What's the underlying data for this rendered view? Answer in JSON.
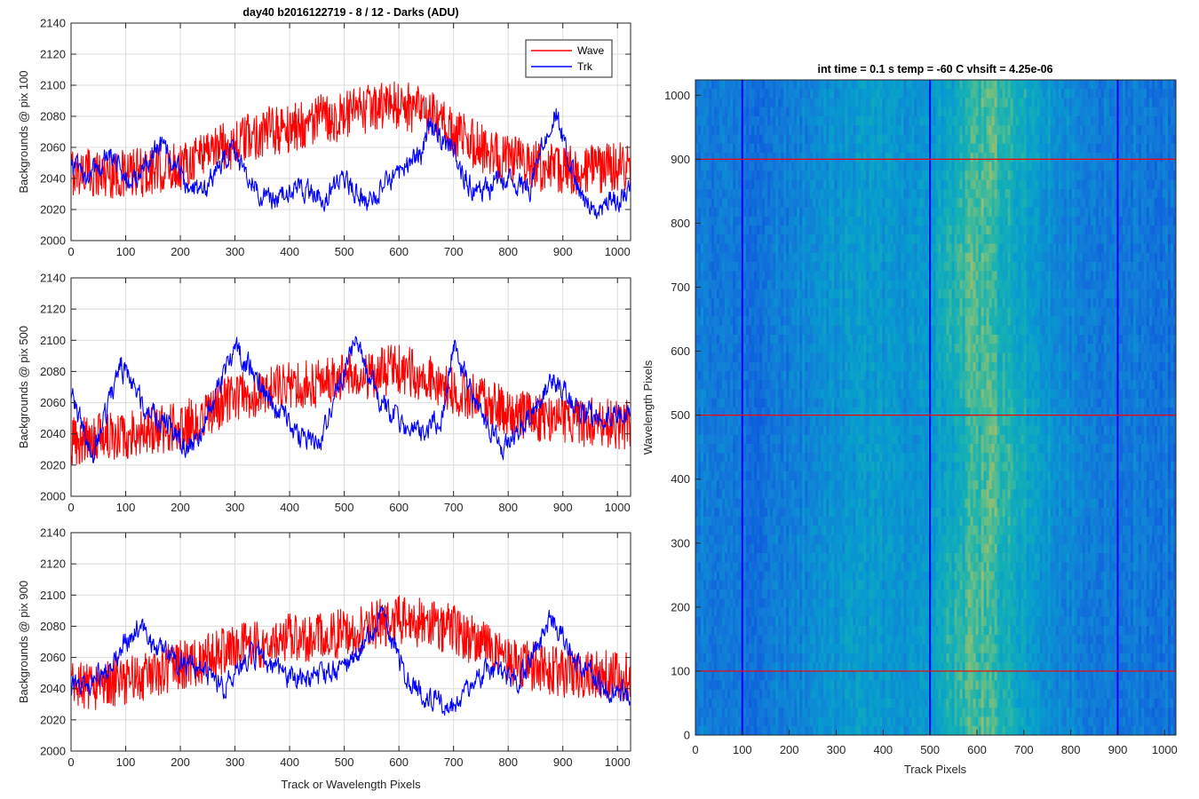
{
  "figure_title": "day40 b2016122719 - 8 / 12 - Darks (ADU)",
  "chart_data": [
    {
      "type": "line",
      "title": "day40 b2016122719 - 8 / 12 - Darks (ADU)",
      "xlabel": "",
      "ylabel": "Backgrounds @ pix 100",
      "xlim": [
        0,
        1024
      ],
      "ylim": [
        2000,
        2140
      ],
      "xticks": [
        0,
        100,
        200,
        300,
        400,
        500,
        600,
        700,
        800,
        900,
        1000
      ],
      "yticks": [
        2000,
        2020,
        2040,
        2060,
        2080,
        2100,
        2120,
        2140
      ],
      "grid": true,
      "legend": {
        "placement": "top-right",
        "entries": [
          "Wave",
          "Trk"
        ]
      },
      "series": [
        {
          "name": "Wave",
          "color": "#ff0000",
          "n_points": 1024,
          "noise_amplitude": 16,
          "anchors": [
            [
              0,
              2045
            ],
            [
              100,
              2042
            ],
            [
              200,
              2048
            ],
            [
              250,
              2060
            ],
            [
              300,
              2062
            ],
            [
              350,
              2070
            ],
            [
              400,
              2072
            ],
            [
              450,
              2078
            ],
            [
              500,
              2080
            ],
            [
              550,
              2085
            ],
            [
              600,
              2088
            ],
            [
              650,
              2082
            ],
            [
              700,
              2070
            ],
            [
              750,
              2060
            ],
            [
              800,
              2052
            ],
            [
              850,
              2048
            ],
            [
              900,
              2045
            ],
            [
              1024,
              2048
            ]
          ]
        },
        {
          "name": "Trk",
          "color": "#0000ff",
          "n_points": 1024,
          "noise_amplitude": 6,
          "anchors": [
            [
              0,
              2050
            ],
            [
              30,
              2040
            ],
            [
              70,
              2055
            ],
            [
              110,
              2035
            ],
            [
              160,
              2062
            ],
            [
              210,
              2038
            ],
            [
              240,
              2030
            ],
            [
              290,
              2060
            ],
            [
              330,
              2038
            ],
            [
              370,
              2025
            ],
            [
              410,
              2035
            ],
            [
              460,
              2028
            ],
            [
              500,
              2040
            ],
            [
              540,
              2025
            ],
            [
              590,
              2042
            ],
            [
              640,
              2055
            ],
            [
              660,
              2075
            ],
            [
              690,
              2062
            ],
            [
              740,
              2030
            ],
            [
              790,
              2040
            ],
            [
              840,
              2035
            ],
            [
              885,
              2085
            ],
            [
              930,
              2030
            ],
            [
              960,
              2020
            ],
            [
              1024,
              2032
            ]
          ]
        }
      ]
    },
    {
      "type": "line",
      "title": "",
      "xlabel": "",
      "ylabel": "Backgrounds @ pix 500",
      "xlim": [
        0,
        1024
      ],
      "ylim": [
        2000,
        2140
      ],
      "xticks": [
        0,
        100,
        200,
        300,
        400,
        500,
        600,
        700,
        800,
        900,
        1000
      ],
      "yticks": [
        2000,
        2020,
        2040,
        2060,
        2080,
        2100,
        2120,
        2140
      ],
      "grid": true,
      "series": [
        {
          "name": "Wave",
          "color": "#ff0000",
          "n_points": 1024,
          "noise_amplitude": 16,
          "anchors": [
            [
              0,
              2035
            ],
            [
              100,
              2040
            ],
            [
              200,
              2045
            ],
            [
              280,
              2060
            ],
            [
              350,
              2068
            ],
            [
              450,
              2072
            ],
            [
              550,
              2078
            ],
            [
              600,
              2082
            ],
            [
              650,
              2076
            ],
            [
              700,
              2068
            ],
            [
              800,
              2055
            ],
            [
              900,
              2048
            ],
            [
              1024,
              2046
            ]
          ]
        },
        {
          "name": "Trk",
          "color": "#0000ff",
          "n_points": 1024,
          "noise_amplitude": 6,
          "anchors": [
            [
              0,
              2065
            ],
            [
              40,
              2025
            ],
            [
              90,
              2085
            ],
            [
              130,
              2060
            ],
            [
              180,
              2045
            ],
            [
              220,
              2030
            ],
            [
              260,
              2060
            ],
            [
              300,
              2095
            ],
            [
              350,
              2070
            ],
            [
              400,
              2045
            ],
            [
              450,
              2030
            ],
            [
              520,
              2098
            ],
            [
              570,
              2060
            ],
            [
              620,
              2040
            ],
            [
              680,
              2050
            ],
            [
              700,
              2098
            ],
            [
              740,
              2060
            ],
            [
              790,
              2030
            ],
            [
              830,
              2045
            ],
            [
              880,
              2075
            ],
            [
              930,
              2055
            ],
            [
              980,
              2050
            ],
            [
              1024,
              2052
            ]
          ]
        }
      ]
    },
    {
      "type": "line",
      "title": "",
      "xlabel": "Track or Wavelength Pixels",
      "ylabel": "Backgrounds @ pix 900",
      "xlim": [
        0,
        1024
      ],
      "ylim": [
        2000,
        2140
      ],
      "xticks": [
        0,
        100,
        200,
        300,
        400,
        500,
        600,
        700,
        800,
        900,
        1000
      ],
      "yticks": [
        2000,
        2020,
        2040,
        2060,
        2080,
        2100,
        2120,
        2140
      ],
      "grid": true,
      "series": [
        {
          "name": "Wave",
          "color": "#ff0000",
          "n_points": 1024,
          "noise_amplitude": 16,
          "anchors": [
            [
              0,
              2040
            ],
            [
              100,
              2045
            ],
            [
              200,
              2055
            ],
            [
              300,
              2065
            ],
            [
              400,
              2072
            ],
            [
              500,
              2075
            ],
            [
              600,
              2085
            ],
            [
              700,
              2078
            ],
            [
              800,
              2058
            ],
            [
              900,
              2050
            ],
            [
              1024,
              2048
            ]
          ]
        },
        {
          "name": "Trk",
          "color": "#0000ff",
          "n_points": 1024,
          "noise_amplitude": 6,
          "anchors": [
            [
              0,
              2040
            ],
            [
              60,
              2050
            ],
            [
              120,
              2080
            ],
            [
              180,
              2060
            ],
            [
              230,
              2055
            ],
            [
              280,
              2040
            ],
            [
              330,
              2065
            ],
            [
              380,
              2050
            ],
            [
              450,
              2045
            ],
            [
              520,
              2060
            ],
            [
              570,
              2085
            ],
            [
              610,
              2050
            ],
            [
              650,
              2035
            ],
            [
              700,
              2030
            ],
            [
              760,
              2052
            ],
            [
              820,
              2045
            ],
            [
              880,
              2085
            ],
            [
              930,
              2055
            ],
            [
              980,
              2040
            ],
            [
              1024,
              2035
            ]
          ]
        }
      ]
    },
    {
      "type": "heatmap",
      "title": "int time = 0.1 s   temp = -60 C   vhsift = 4.25e-06",
      "xlabel": "Track Pixels",
      "ylabel": "Wavelength Pixels",
      "xlim": [
        0,
        1024
      ],
      "ylim": [
        0,
        1024
      ],
      "xticks": [
        0,
        100,
        200,
        300,
        400,
        500,
        600,
        700,
        800,
        900,
        1000
      ],
      "yticks": [
        0,
        100,
        200,
        300,
        400,
        500,
        600,
        700,
        800,
        900,
        1000
      ],
      "grid": false,
      "column_profile": [
        [
          0,
          0.3
        ],
        [
          120,
          0.25
        ],
        [
          250,
          0.35
        ],
        [
          350,
          0.45
        ],
        [
          450,
          0.4
        ],
        [
          520,
          0.48
        ],
        [
          580,
          0.65
        ],
        [
          620,
          0.68
        ],
        [
          680,
          0.55
        ],
        [
          760,
          0.4
        ],
        [
          850,
          0.3
        ],
        [
          950,
          0.28
        ],
        [
          1024,
          0.25
        ]
      ],
      "dark_columns": [
        100,
        500,
        900
      ],
      "row_markers": [
        100,
        500,
        900
      ],
      "column_marker_color": "#0000ff",
      "row_marker_color": "#ff0000"
    }
  ]
}
